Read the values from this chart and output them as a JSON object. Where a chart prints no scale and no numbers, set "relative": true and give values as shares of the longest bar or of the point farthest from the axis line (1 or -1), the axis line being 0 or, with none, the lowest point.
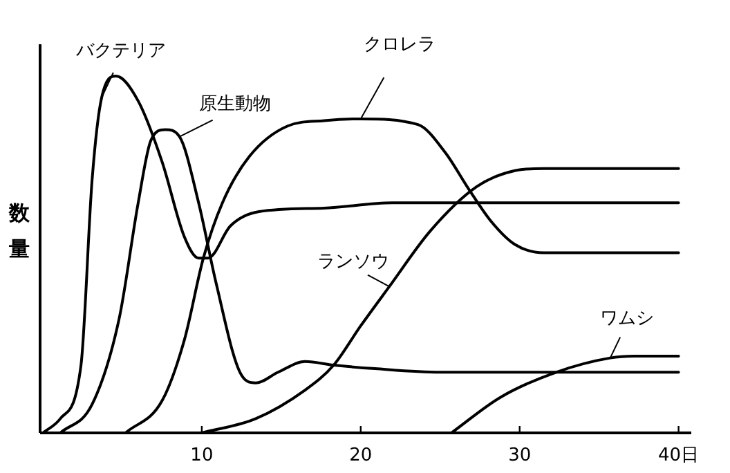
{
  "chart_data": {
    "type": "line",
    "ylabel": "数量",
    "relative": true,
    "xlim": [
      0,
      40.8
    ],
    "xticks": [
      10,
      20,
      30,
      {
        "value": 40,
        "label": "40日"
      }
    ],
    "line_style": "solid",
    "series": [
      {
        "name": "バクテリア",
        "color": "#000000",
        "x": [
          0,
          1.1,
          2.4,
          3.1,
          3.7,
          4.6,
          6.0,
          7.5,
          8.9,
          9.8,
          10.4,
          11.8,
          13.6,
          17.7,
          22,
          30,
          40
        ],
        "values": [
          0,
          0.04,
          0.19,
          0.71,
          0.94,
          1.0,
          0.93,
          0.76,
          0.55,
          0.49,
          0.49,
          0.58,
          0.62,
          0.63,
          0.645,
          0.645,
          0.645
        ]
      },
      {
        "name": "原生動物",
        "color": "#000000",
        "x": [
          1.1,
          3.1,
          4.8,
          6.0,
          6.8,
          7.7,
          8.6,
          9.8,
          10.9,
          12.4,
          13.4,
          14.8,
          16.5,
          18.3,
          20.9,
          25,
          40
        ],
        "values": [
          0,
          0.08,
          0.32,
          0.645,
          0.82,
          0.85,
          0.83,
          0.645,
          0.42,
          0.17,
          0.14,
          0.17,
          0.2,
          0.19,
          0.18,
          0.17,
          0.17
        ]
      },
      {
        "name": "クロレラ",
        "color": "#000000",
        "x": [
          5.2,
          7.5,
          8.9,
          10.1,
          11.3,
          13.0,
          15.4,
          17.7,
          20.0,
          23.6,
          25.3,
          26.8,
          28.2,
          29.7,
          31.5,
          40
        ],
        "values": [
          0,
          0.09,
          0.26,
          0.49,
          0.645,
          0.775,
          0.86,
          0.875,
          0.88,
          0.864,
          0.787,
          0.683,
          0.593,
          0.528,
          0.505,
          0.505
        ]
      },
      {
        "name": "ランソウ",
        "color": "#000000",
        "x": [
          10.0,
          13.4,
          16.5,
          18.3,
          20.0,
          21.8,
          24.4,
          27.3,
          29.7,
          31.5,
          40
        ],
        "values": [
          0,
          0.04,
          0.12,
          0.19,
          0.3,
          0.41,
          0.567,
          0.69,
          0.735,
          0.741,
          0.741
        ]
      },
      {
        "name": "ワムシ",
        "color": "#000000",
        "x": [
          25.7,
          28.8,
          32.3,
          35.7,
          37.2,
          40
        ],
        "values": [
          0,
          0.1,
          0.17,
          0.21,
          0.215,
          0.215
        ]
      }
    ]
  }
}
